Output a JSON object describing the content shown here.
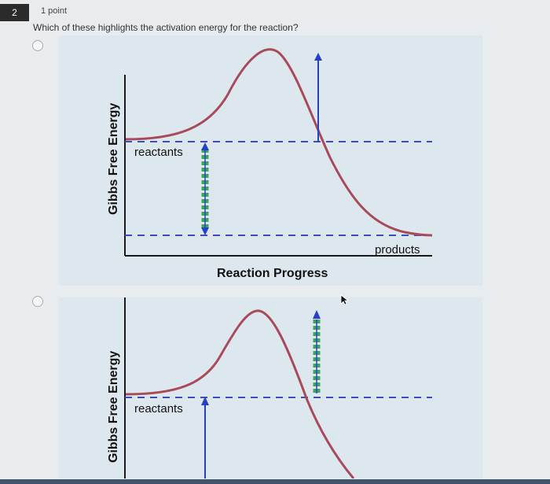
{
  "question": {
    "number": "2",
    "points": "1 point",
    "text": "Which of these highlights the activation energy for the reaction?"
  },
  "options": [
    {
      "id": "A",
      "y_label": "Gibbs Free Energy",
      "x_label": "Reaction Progress",
      "reactants_label": "reactants",
      "products_label": "products"
    },
    {
      "id": "B",
      "y_label": "Gibbs Free Energy",
      "reactants_label": "reactants"
    }
  ],
  "colors": {
    "panel_bg": "#dde8ee",
    "curve": "#a84a5a",
    "dashed": "#3b4cc4",
    "arrow_blue": "#2840c8",
    "highlight_green": "#3fa55a"
  },
  "icons": {
    "radio": "radio-button-unselected",
    "cursor": "mouse-pointer-icon"
  }
}
